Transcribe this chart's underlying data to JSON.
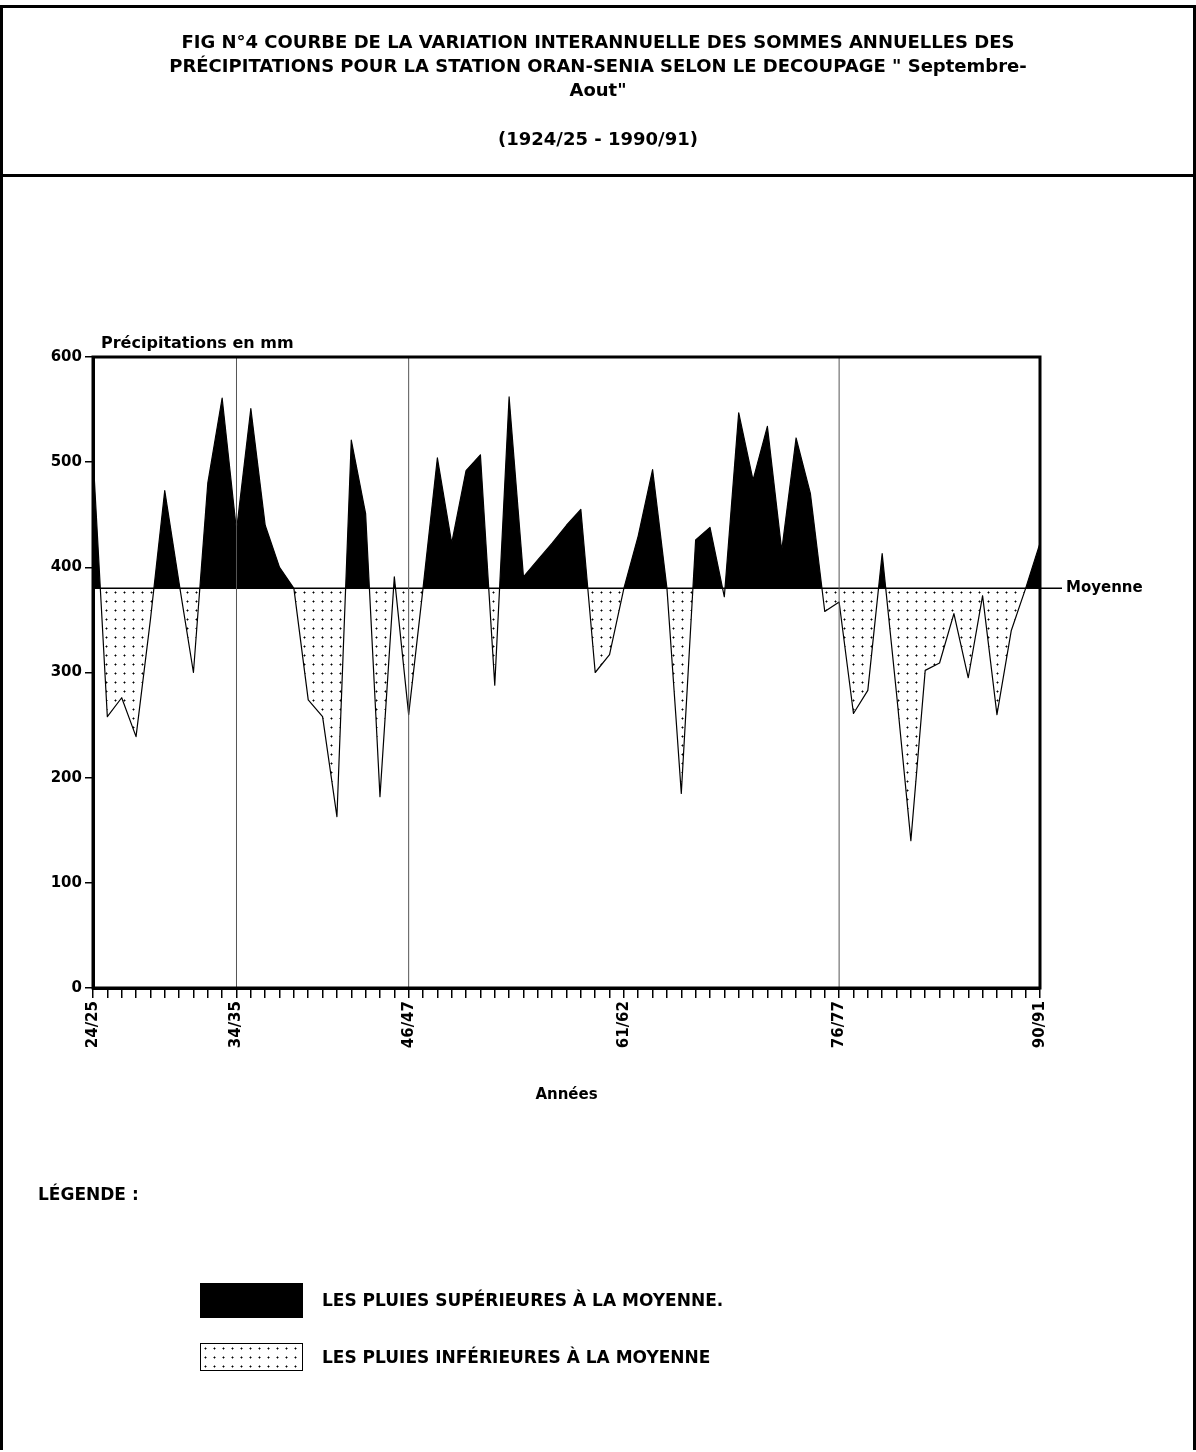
{
  "chart_data": {
    "type": "area",
    "title": "FIG N°4 COURBE DE LA VARIATION INTERANNUELLE DES SOMMES ANNUELLES DES PRÉCIPITATIONS POUR LA STATION ORAN-SENIA SELON LE DECOUPAGE \" Septembre-Aout\"",
    "subtitle": "(1924/25 - 1990/91)",
    "xlabel": "Années",
    "ylabel": "Précipitations en mm",
    "legend_title": "LÉGENDE :",
    "annotations": [
      "LES PLUIES SUPÉRIEURES À LA MOYENNE.",
      "LES PLUIES INFÉRIEURES À LA MOYENNE"
    ],
    "categories": [
      "24/25",
      null,
      null,
      null,
      null,
      null,
      null,
      null,
      null,
      null,
      "34/35",
      null,
      null,
      null,
      null,
      null,
      null,
      null,
      null,
      null,
      null,
      null,
      "46/47",
      null,
      null,
      null,
      null,
      null,
      null,
      null,
      null,
      null,
      null,
      null,
      null,
      null,
      null,
      "61/62",
      null,
      null,
      null,
      null,
      null,
      null,
      null,
      null,
      null,
      null,
      null,
      null,
      null,
      null,
      "76/77",
      null,
      null,
      null,
      null,
      null,
      null,
      null,
      null,
      null,
      null,
      null,
      null,
      null,
      "90/91"
    ],
    "series": [
      {
        "color": "#000000",
        "values": [
          507,
          258,
          276,
          239,
          350,
          473,
          385,
          300,
          480,
          561,
          435,
          551,
          440,
          400,
          380,
          274,
          258,
          163,
          521,
          451,
          182,
          391,
          260,
          380,
          504,
          423,
          492,
          507,
          288,
          562,
          391,
          407,
          423,
          440,
          455,
          300,
          317,
          380,
          430,
          493,
          380,
          185,
          426,
          438,
          372,
          547,
          483,
          534,
          416,
          523,
          470,
          358,
          367,
          261,
          283,
          413,
          280,
          140,
          302,
          309,
          356,
          295,
          373,
          260,
          340,
          380,
          423
        ]
      }
    ],
    "ylim": [
      0,
      600
    ],
    "yticks": [
      0,
      100,
      200,
      300,
      400,
      500,
      600
    ],
    "ref_lines": [
      {
        "axis": "y",
        "value": 380,
        "label": "Moyenne"
      },
      {
        "axis": "x",
        "value": "34/35",
        "color": "#555555"
      },
      {
        "axis": "x",
        "value": "46/47",
        "color": "#555555"
      },
      {
        "axis": "x",
        "value": "76/77",
        "color": "#555555"
      }
    ]
  }
}
